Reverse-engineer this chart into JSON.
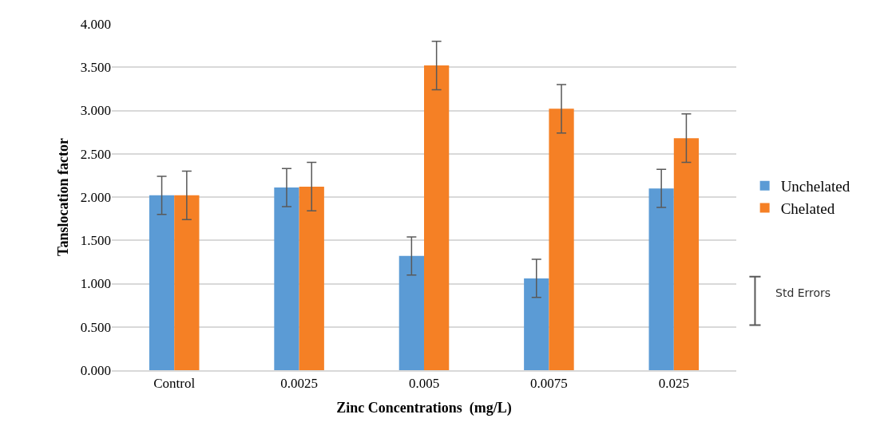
{
  "chart_data": {
    "type": "bar",
    "xlabel": "Zinc Concentrations  (mg/L)",
    "ylabel": "Tanslocation factor",
    "categories": [
      "Control",
      "0.0025",
      "0.005",
      "0.0075",
      "0.025"
    ],
    "series": [
      {
        "name": "Unchelated",
        "color": "#5b9bd5",
        "values": [
          2.02,
          2.11,
          1.32,
          1.06,
          2.1
        ],
        "errors": [
          0.22,
          0.22,
          0.22,
          0.22,
          0.22
        ]
      },
      {
        "name": "Chelated",
        "color": "#f58025",
        "values": [
          2.02,
          2.12,
          3.52,
          3.02,
          2.68
        ],
        "errors": [
          0.28,
          0.28,
          0.28,
          0.28,
          0.28
        ]
      }
    ],
    "ylim": [
      0,
      4
    ],
    "yticks": [
      {
        "value": 0,
        "label": "0.000"
      },
      {
        "value": 0.5,
        "label": "0.500"
      },
      {
        "value": 1,
        "label": "1.000"
      },
      {
        "value": 1.5,
        "label": "1.500"
      },
      {
        "value": 2,
        "label": "2.000"
      },
      {
        "value": 2.5,
        "label": "2.500"
      },
      {
        "value": 3,
        "label": "3.000"
      },
      {
        "value": 3.5,
        "label": "3.500"
      },
      {
        "value": 4,
        "label": "4.000"
      }
    ],
    "grid": "y",
    "legend": "right",
    "annotations": [
      "Std Errors"
    ]
  }
}
